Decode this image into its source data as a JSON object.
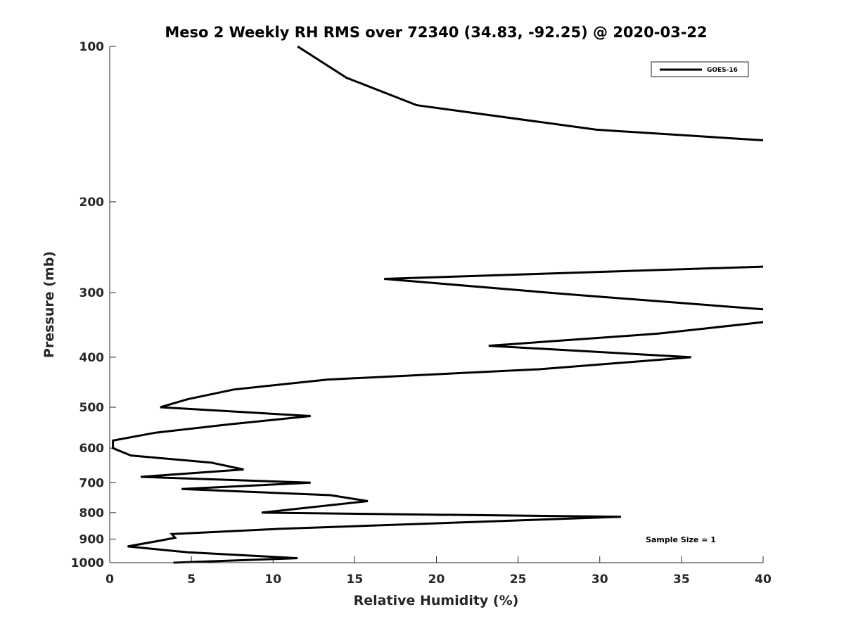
{
  "chart_data": {
    "type": "line",
    "title": "Meso 2 Weekly RH RMS over 72340 (34.83, -92.25) @ 2020-03-22",
    "xlabel": "Relative Humidity (%)",
    "ylabel": "Pressure (mb)",
    "xlim": [
      0,
      40
    ],
    "ylim": [
      1000,
      100
    ],
    "y_scale": "log",
    "x_ticks": [
      0,
      5,
      10,
      15,
      20,
      25,
      30,
      35,
      40
    ],
    "x_tick_labels": [
      "0",
      "5",
      "10",
      "15",
      "20",
      "25",
      "30",
      "35",
      "40"
    ],
    "y_ticks": [
      100,
      200,
      300,
      400,
      500,
      600,
      700,
      800,
      900,
      1000
    ],
    "y_tick_labels": [
      "100",
      "200",
      "300",
      "400",
      "500",
      "600",
      "700",
      "800",
      "900",
      "1000"
    ],
    "grid": false,
    "legend_position": "top-right",
    "annotation": "Sample Size = 1",
    "series": [
      {
        "name": "GOES-16",
        "color": "#000000",
        "x": [
          11.5,
          14.5,
          18.8,
          29.8,
          40,
          null,
          40,
          16.8,
          28,
          40,
          null,
          40,
          33.6,
          23.2,
          35.6,
          26.3,
          13.3,
          7.6,
          4.8,
          3.1,
          12.3,
          7.2,
          2.8,
          0.2,
          0.2,
          1.3,
          6.2,
          8.2,
          1.9,
          12.3,
          4.4,
          13.5,
          15.8,
          9.3,
          31.3,
          10.4,
          3.8,
          4,
          2.8,
          1.1,
          4.8,
          11.5,
          3.9
        ],
        "y": [
          100,
          115,
          130,
          145,
          152,
          null,
          267,
          282,
          302,
          323,
          null,
          342,
          360,
          380,
          400,
          422,
          442,
          462,
          482,
          500,
          520,
          540,
          560,
          580,
          600,
          620,
          640,
          660,
          682,
          700,
          720,
          740,
          760,
          800,
          815,
          860,
          880,
          895,
          910,
          930,
          955,
          980,
          1000
        ]
      }
    ]
  }
}
